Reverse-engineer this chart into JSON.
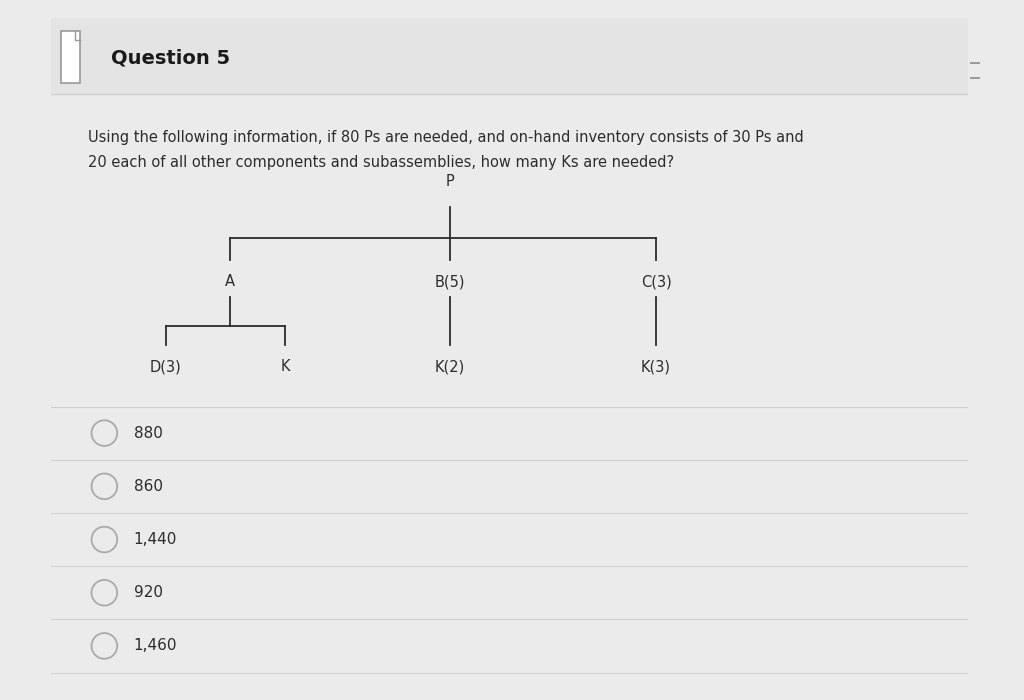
{
  "title": "Question 5",
  "question_text_line1": "Using the following information, if 80 Ps are needed, and on-hand inventory consists of 30 Ps and",
  "question_text_line2": "20 each of all other components and subassemblies, how many Ks are needed?",
  "bg_color": "#ebebeb",
  "card_color": "#ffffff",
  "header_bg": "#e4e4e4",
  "title_color": "#1a1a1a",
  "text_color": "#2c2c2c",
  "font_size_title": 14,
  "font_size_text": 10.5,
  "font_size_tree": 10.5,
  "font_size_options": 11,
  "line_color": "#2c2c2c",
  "circle_color": "#aaaaaa",
  "separator_color": "#d0d0d0",
  "options": [
    "880",
    "860",
    "1,440",
    "920",
    "1,460"
  ]
}
